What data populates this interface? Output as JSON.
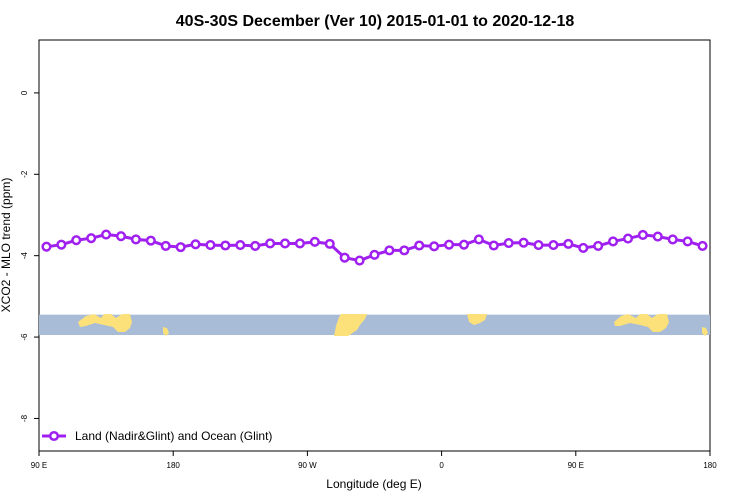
{
  "chart_data": {
    "type": "line",
    "title": "40S-30S December (Ver 10)   2015-01-01 to 2020-12-18",
    "xlabel": "Longitude (deg E)",
    "ylabel": "XCO2 - MLO trend (ppm)",
    "x_ticks": [
      {
        "value": 90,
        "label": "90 E"
      },
      {
        "value": 180,
        "label": "180"
      },
      {
        "value": 270,
        "label": "90 W"
      },
      {
        "value": 360,
        "label": "0"
      },
      {
        "value": 450,
        "label": "90 E"
      },
      {
        "value": 540,
        "label": "180"
      }
    ],
    "y_ticks": [
      0,
      -2,
      -4,
      -6,
      -8
    ],
    "xlim": [
      90,
      540
    ],
    "ylim": [
      -8.8,
      1.3
    ],
    "grid": false,
    "legend_position": "bottom-left",
    "series": [
      {
        "name": "Land (Nadir&Glint) and Ocean (Glint)",
        "color": "#a020f0",
        "x": [
          95,
          105,
          115,
          125,
          135,
          145,
          155,
          165,
          175,
          185,
          195,
          205,
          215,
          225,
          235,
          245,
          255,
          265,
          275,
          285,
          295,
          305,
          315,
          325,
          335,
          345,
          355,
          365,
          375,
          385,
          395,
          405,
          415,
          425,
          435,
          445,
          455,
          465,
          475,
          485,
          495,
          505,
          515,
          525,
          535
        ],
        "y": [
          -3.78,
          -3.73,
          -3.62,
          -3.57,
          -3.48,
          -3.52,
          -3.6,
          -3.63,
          -3.76,
          -3.79,
          -3.72,
          -3.74,
          -3.75,
          -3.74,
          -3.76,
          -3.7,
          -3.7,
          -3.7,
          -3.66,
          -3.71,
          -4.05,
          -4.12,
          -3.98,
          -3.87,
          -3.87,
          -3.75,
          -3.77,
          -3.73,
          -3.73,
          -3.6,
          -3.75,
          -3.69,
          -3.68,
          -3.74,
          -3.74,
          -3.71,
          -3.81,
          -3.76,
          -3.65,
          -3.58,
          -3.49,
          -3.53,
          -3.6,
          -3.65,
          -3.76
        ]
      }
    ],
    "map_strip": {
      "y_range": [
        -5.45,
        -5.95
      ],
      "ocean_color": "#a8bcd8",
      "land_color": "#fce07a"
    }
  }
}
